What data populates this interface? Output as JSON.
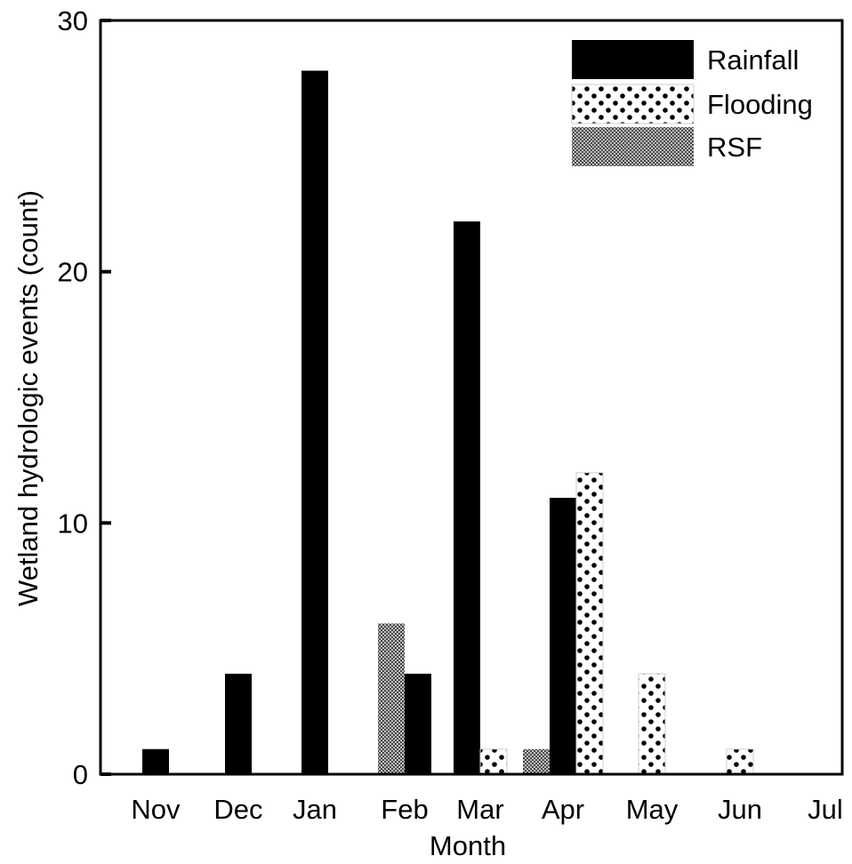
{
  "chart_data": {
    "type": "bar",
    "title": "",
    "xlabel": "Month",
    "ylabel": "Wetland hydrologic events (count)",
    "ylim": [
      0,
      30
    ],
    "yticks": [
      0,
      10,
      20,
      30
    ],
    "categories": [
      "Nov",
      "Dec",
      "Jan",
      "Feb",
      "Mar",
      "Apr",
      "May",
      "Jun",
      "Jul"
    ],
    "series": [
      {
        "name": "Rainfall",
        "pattern": "solid",
        "color": "#000000",
        "values": [
          1,
          4,
          28,
          4,
          22,
          11,
          0,
          0,
          0
        ]
      },
      {
        "name": "Flooding",
        "pattern": "dots",
        "color": "#000000",
        "values": [
          0,
          0,
          0,
          0,
          1,
          12,
          4,
          1,
          0
        ]
      },
      {
        "name": "RSF",
        "pattern": "checker",
        "color": "#7a7a7a",
        "values": [
          0,
          0,
          0,
          6,
          0,
          1,
          0,
          0,
          0
        ]
      }
    ],
    "legend_position": "top-right",
    "grid": false
  }
}
